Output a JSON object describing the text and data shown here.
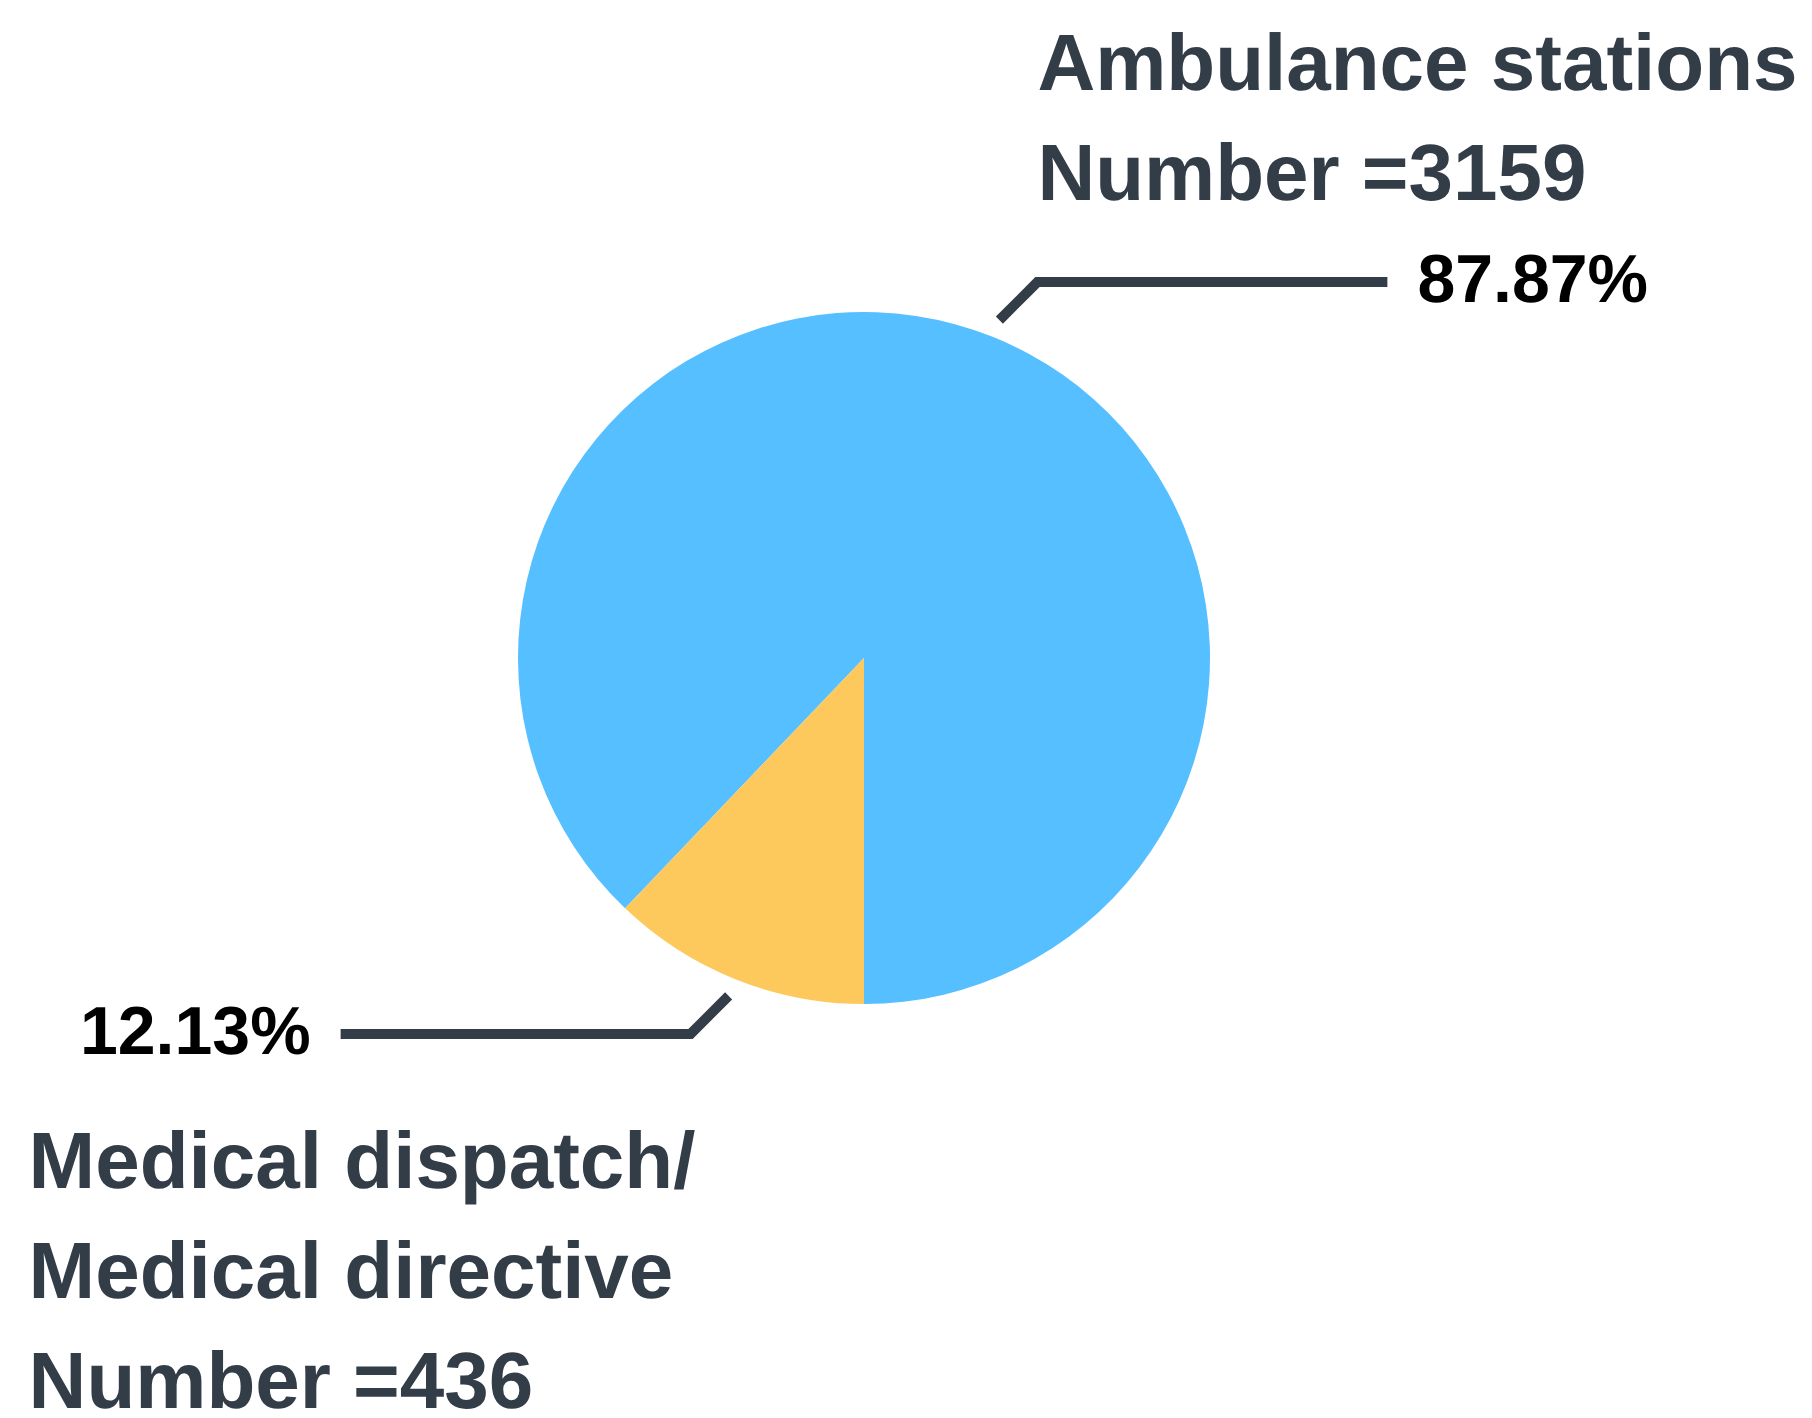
{
  "chart_data": {
    "type": "pie",
    "categories": [
      "Ambulance stations\nNumber =3159",
      "Medical dispatch/\nMedical directive\nNumber =436"
    ],
    "values": [
      87.87,
      12.13
    ],
    "colors": [
      "#55bfff",
      "#fdc85c"
    ],
    "value_labels": [
      "87.87%",
      "12.13%"
    ]
  }
}
